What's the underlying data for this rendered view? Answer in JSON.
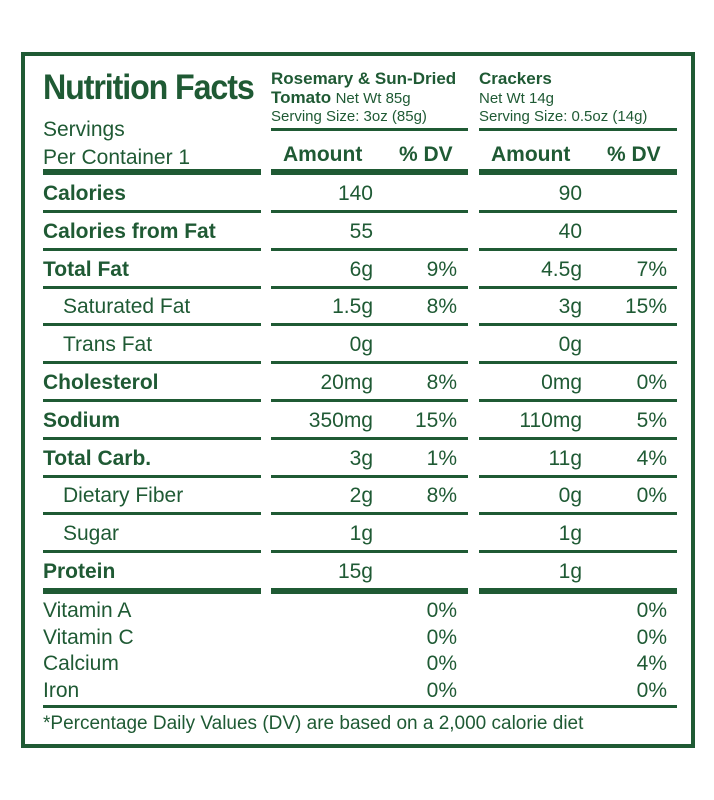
{
  "header": {
    "title": "Nutrition Facts",
    "servings_line1": "Servings",
    "servings_line2": "Per Container 1"
  },
  "products": [
    {
      "name_line1": "Rosemary & Sun-Dried",
      "name_line2": "Tomato",
      "net_wt": "Net Wt 85g",
      "serving_size": "Serving Size: 3oz (85g)",
      "amount_label": "Amount",
      "dv_label": "% DV"
    },
    {
      "name_line1": "Crackers",
      "net_wt": "Net Wt 14g",
      "serving_size": "Serving Size: 0.5oz (14g)",
      "amount_label": "Amount",
      "dv_label": "% DV"
    }
  ],
  "rows": [
    {
      "label": "Calories",
      "a1": "140",
      "d1": "",
      "a2": "90",
      "d2": ""
    },
    {
      "label": "Calories from Fat",
      "a1": "55",
      "d1": "",
      "a2": "40",
      "d2": ""
    },
    {
      "label": "Total Fat",
      "a1": "6g",
      "d1": "9%",
      "a2": "4.5g",
      "d2": "7%"
    },
    {
      "label": "Saturated Fat",
      "a1": "1.5g",
      "d1": "8%",
      "a2": "3g",
      "d2": "15%"
    },
    {
      "label": "Trans Fat",
      "a1": "0g",
      "d1": "",
      "a2": "0g",
      "d2": ""
    },
    {
      "label": "Cholesterol",
      "a1": "20mg",
      "d1": "8%",
      "a2": "0mg",
      "d2": "0%"
    },
    {
      "label": "Sodium",
      "a1": "350mg",
      "d1": "15%",
      "a2": "110mg",
      "d2": "5%"
    },
    {
      "label": "Total Carb.",
      "a1": "3g",
      "d1": "1%",
      "a2": "11g",
      "d2": "4%"
    },
    {
      "label": "Dietary Fiber",
      "a1": "2g",
      "d1": "8%",
      "a2": "0g",
      "d2": "0%"
    },
    {
      "label": "Sugar",
      "a1": "1g",
      "d1": "",
      "a2": "1g",
      "d2": ""
    },
    {
      "label": "Protein",
      "a1": "15g",
      "d1": "",
      "a2": "1g",
      "d2": ""
    }
  ],
  "vitamins": [
    {
      "label": "Vitamin A",
      "d1": "0%",
      "d2": "0%"
    },
    {
      "label": "Vitamin C",
      "d1": "0%",
      "d2": "0%"
    },
    {
      "label": "Calcium",
      "d1": "0%",
      "d2": "4%"
    },
    {
      "label": "Iron",
      "d1": "0%",
      "d2": "0%"
    }
  ],
  "footnote": "*Percentage Daily Values (DV) are based on a 2,000 calorie diet",
  "colors": {
    "ink": "#1f5a34"
  }
}
